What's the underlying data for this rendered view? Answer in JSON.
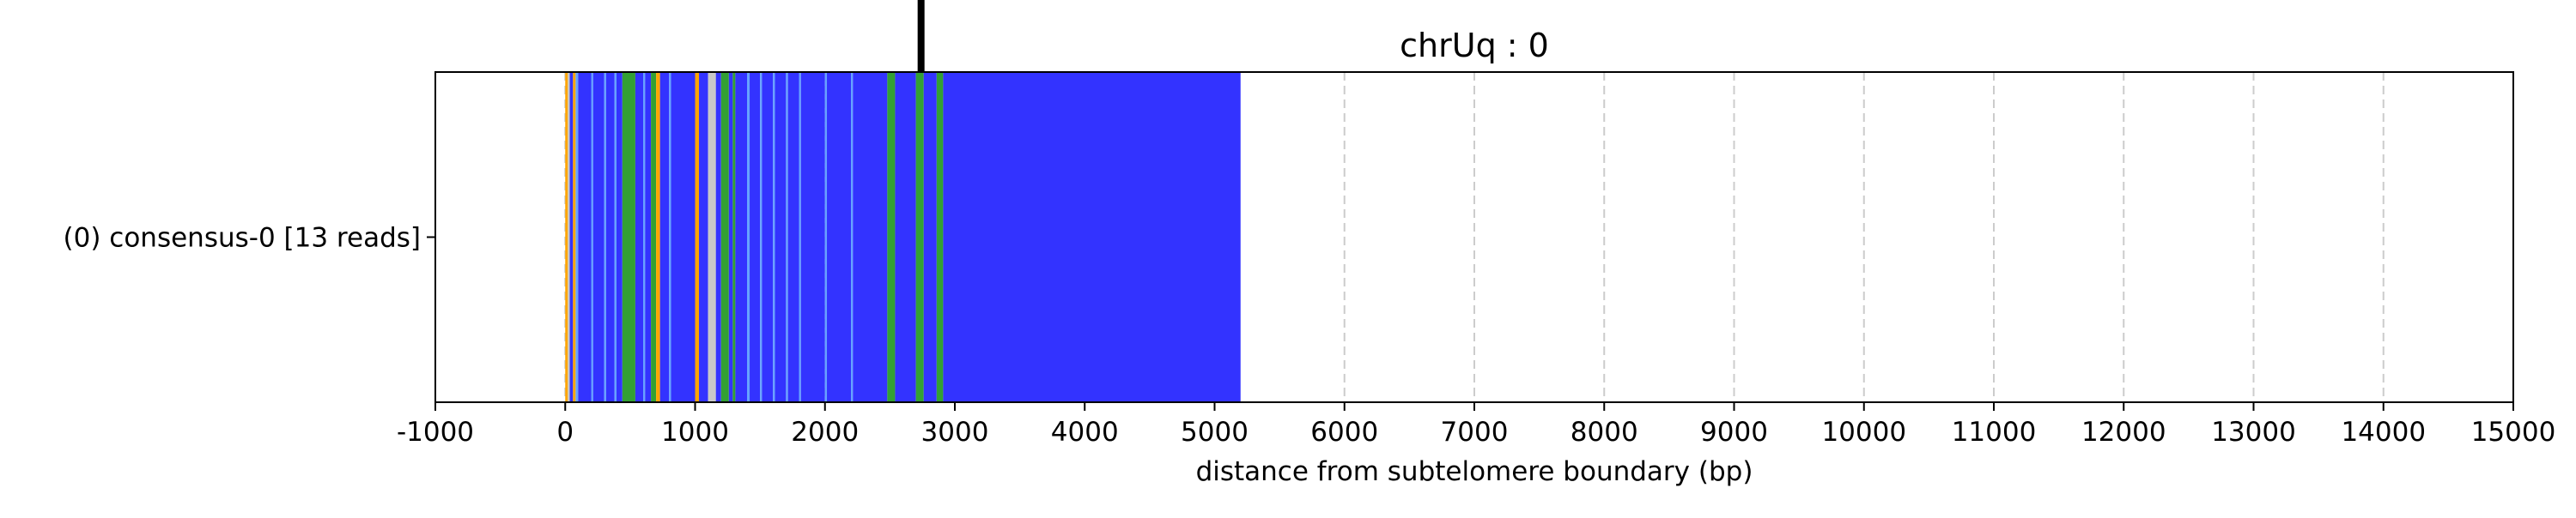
{
  "chart_data": {
    "type": "bar",
    "title": "chrUq : 0",
    "xlabel": "distance from subtelomere boundary (bp)",
    "ylabel": "",
    "xlim": [
      -1000,
      15000
    ],
    "xticks": [
      -1000,
      0,
      1000,
      2000,
      3000,
      4000,
      5000,
      6000,
      7000,
      8000,
      9000,
      10000,
      11000,
      12000,
      13000,
      14000,
      15000
    ],
    "grid": "vertical dashed at x ticks",
    "categories": [
      "(0) consensus-0 [13 reads]"
    ],
    "marker_position": 2740,
    "colors": {
      "blue": "#3333ff",
      "light_blue": "#66a3ff",
      "green": "#33a033",
      "orange": "#ffa500",
      "gray": "#c8c8c8",
      "marker": "#000000",
      "grid": "#cccccc"
    },
    "segments": [
      {
        "start": 0,
        "end": 20,
        "color": "orange"
      },
      {
        "start": 20,
        "end": 35,
        "color": "gray"
      },
      {
        "start": 35,
        "end": 60,
        "color": "blue"
      },
      {
        "start": 60,
        "end": 80,
        "color": "orange"
      },
      {
        "start": 80,
        "end": 100,
        "color": "light_blue"
      },
      {
        "start": 100,
        "end": 200,
        "color": "blue"
      },
      {
        "start": 200,
        "end": 215,
        "color": "light_blue"
      },
      {
        "start": 215,
        "end": 300,
        "color": "blue"
      },
      {
        "start": 300,
        "end": 315,
        "color": "light_blue"
      },
      {
        "start": 315,
        "end": 380,
        "color": "blue"
      },
      {
        "start": 380,
        "end": 395,
        "color": "light_blue"
      },
      {
        "start": 395,
        "end": 440,
        "color": "blue"
      },
      {
        "start": 440,
        "end": 540,
        "color": "green"
      },
      {
        "start": 540,
        "end": 600,
        "color": "blue"
      },
      {
        "start": 600,
        "end": 615,
        "color": "light_blue"
      },
      {
        "start": 615,
        "end": 660,
        "color": "blue"
      },
      {
        "start": 660,
        "end": 700,
        "color": "green"
      },
      {
        "start": 700,
        "end": 730,
        "color": "orange"
      },
      {
        "start": 730,
        "end": 800,
        "color": "blue"
      },
      {
        "start": 800,
        "end": 815,
        "color": "light_blue"
      },
      {
        "start": 815,
        "end": 1000,
        "color": "blue"
      },
      {
        "start": 1000,
        "end": 1030,
        "color": "orange"
      },
      {
        "start": 1030,
        "end": 1100,
        "color": "blue"
      },
      {
        "start": 1100,
        "end": 1160,
        "color": "gray"
      },
      {
        "start": 1160,
        "end": 1200,
        "color": "blue"
      },
      {
        "start": 1200,
        "end": 1260,
        "color": "green"
      },
      {
        "start": 1260,
        "end": 1290,
        "color": "blue"
      },
      {
        "start": 1290,
        "end": 1310,
        "color": "green"
      },
      {
        "start": 1310,
        "end": 1400,
        "color": "blue"
      },
      {
        "start": 1400,
        "end": 1420,
        "color": "light_blue"
      },
      {
        "start": 1420,
        "end": 1500,
        "color": "blue"
      },
      {
        "start": 1500,
        "end": 1515,
        "color": "light_blue"
      },
      {
        "start": 1515,
        "end": 1600,
        "color": "blue"
      },
      {
        "start": 1600,
        "end": 1615,
        "color": "light_blue"
      },
      {
        "start": 1615,
        "end": 1700,
        "color": "blue"
      },
      {
        "start": 1700,
        "end": 1715,
        "color": "light_blue"
      },
      {
        "start": 1715,
        "end": 1800,
        "color": "blue"
      },
      {
        "start": 1800,
        "end": 1815,
        "color": "light_blue"
      },
      {
        "start": 1815,
        "end": 2000,
        "color": "blue"
      },
      {
        "start": 2000,
        "end": 2015,
        "color": "light_blue"
      },
      {
        "start": 2015,
        "end": 2200,
        "color": "blue"
      },
      {
        "start": 2200,
        "end": 2215,
        "color": "light_blue"
      },
      {
        "start": 2215,
        "end": 2480,
        "color": "blue"
      },
      {
        "start": 2480,
        "end": 2540,
        "color": "green"
      },
      {
        "start": 2540,
        "end": 2700,
        "color": "blue"
      },
      {
        "start": 2700,
        "end": 2760,
        "color": "green"
      },
      {
        "start": 2760,
        "end": 2860,
        "color": "blue"
      },
      {
        "start": 2860,
        "end": 2910,
        "color": "green"
      },
      {
        "start": 2910,
        "end": 5200,
        "color": "blue"
      }
    ]
  }
}
